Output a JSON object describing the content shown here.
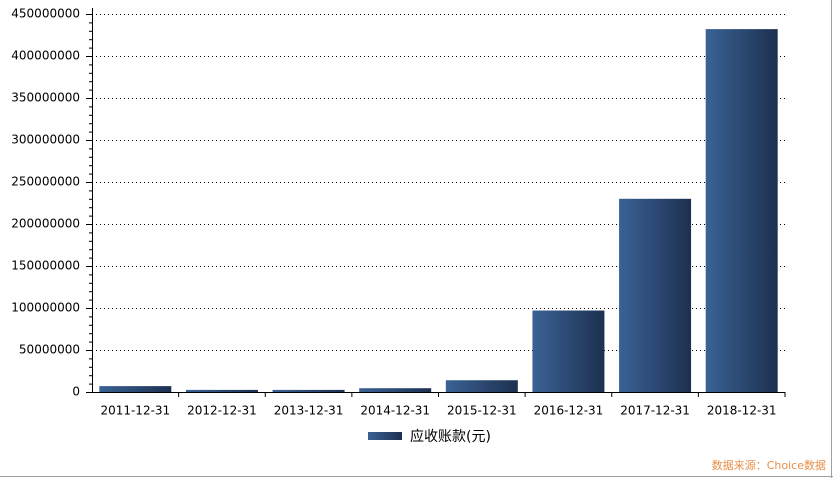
{
  "chart_data": {
    "type": "bar",
    "categories": [
      "2011-12-31",
      "2012-12-31",
      "2013-12-31",
      "2014-12-31",
      "2015-12-31",
      "2016-12-31",
      "2017-12-31",
      "2018-12-31"
    ],
    "series": [
      {
        "name": "应收账款(元)",
        "color": "#3a6295",
        "values": [
          7000000,
          2500000,
          2500000,
          4500000,
          14000000,
          97000000,
          230000000,
          432000000
        ]
      }
    ],
    "ylim": [
      0,
      450000000
    ],
    "yticks": [
      0,
      50000000,
      100000000,
      150000000,
      200000000,
      250000000,
      300000000,
      350000000,
      400000000,
      450000000
    ],
    "grid": true,
    "legend": "bottom",
    "source": "数据来源：Choice数据"
  }
}
